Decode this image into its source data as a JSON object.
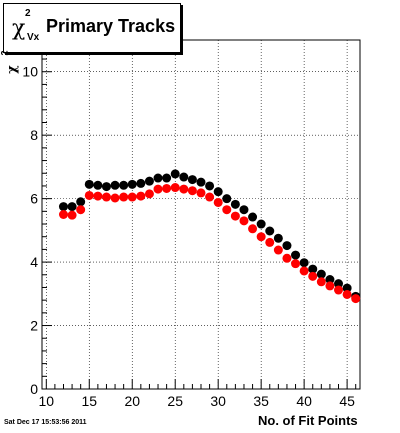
{
  "title": {
    "symbol": "χ",
    "superscript": "2",
    "subscript": "Vx",
    "text": "Primary Tracks"
  },
  "ylabel": {
    "symbol": "χ",
    "superscript": "2",
    "subscript": "Vx"
  },
  "footer": {
    "datestamp": "Sat Dec 17 15:53:56 2011"
  },
  "chart_data": {
    "type": "scatter",
    "xlabel": "No. of Fit Points",
    "xlim": [
      9.5,
      46.5
    ],
    "ylim": [
      0,
      11
    ],
    "x_ticks": [
      10,
      15,
      20,
      25,
      30,
      35,
      40,
      45
    ],
    "y_ticks": [
      0,
      2,
      4,
      6,
      8,
      10
    ],
    "grid": true,
    "series": [
      {
        "color": "#000000",
        "points": [
          [
            12,
            5.75
          ],
          [
            13,
            5.75
          ],
          [
            14,
            5.9
          ],
          [
            15,
            6.45
          ],
          [
            16,
            6.42
          ],
          [
            17,
            6.38
          ],
          [
            18,
            6.42
          ],
          [
            19,
            6.42
          ],
          [
            20,
            6.45
          ],
          [
            21,
            6.48
          ],
          [
            22,
            6.55
          ],
          [
            23,
            6.65
          ],
          [
            24,
            6.65
          ],
          [
            25,
            6.78
          ],
          [
            26,
            6.68
          ],
          [
            27,
            6.6
          ],
          [
            28,
            6.52
          ],
          [
            29,
            6.4
          ],
          [
            30,
            6.22
          ],
          [
            31,
            6.0
          ],
          [
            32,
            5.82
          ],
          [
            33,
            5.65
          ],
          [
            34,
            5.42
          ],
          [
            35,
            5.2
          ],
          [
            36,
            4.98
          ],
          [
            37,
            4.75
          ],
          [
            38,
            4.52
          ],
          [
            39,
            4.22
          ],
          [
            40,
            3.98
          ],
          [
            41,
            3.78
          ],
          [
            42,
            3.62
          ],
          [
            43,
            3.45
          ],
          [
            44,
            3.32
          ],
          [
            45,
            3.18
          ],
          [
            46,
            2.92
          ]
        ]
      },
      {
        "color": "#ff0000",
        "points": [
          [
            12,
            5.5
          ],
          [
            13,
            5.48
          ],
          [
            14,
            5.65
          ],
          [
            15,
            6.1
          ],
          [
            16,
            6.08
          ],
          [
            17,
            6.05
          ],
          [
            18,
            6.02
          ],
          [
            19,
            6.05
          ],
          [
            20,
            6.05
          ],
          [
            21,
            6.08
          ],
          [
            22,
            6.15
          ],
          [
            23,
            6.3
          ],
          [
            24,
            6.32
          ],
          [
            25,
            6.35
          ],
          [
            26,
            6.3
          ],
          [
            27,
            6.25
          ],
          [
            28,
            6.18
          ],
          [
            29,
            6.05
          ],
          [
            30,
            5.88
          ],
          [
            31,
            5.65
          ],
          [
            32,
            5.45
          ],
          [
            33,
            5.3
          ],
          [
            34,
            5.05
          ],
          [
            35,
            4.8
          ],
          [
            36,
            4.62
          ],
          [
            37,
            4.38
          ],
          [
            38,
            4.12
          ],
          [
            39,
            3.95
          ],
          [
            40,
            3.72
          ],
          [
            41,
            3.55
          ],
          [
            42,
            3.38
          ],
          [
            43,
            3.25
          ],
          [
            44,
            3.12
          ],
          [
            45,
            2.98
          ],
          [
            46,
            2.85
          ]
        ]
      }
    ]
  }
}
